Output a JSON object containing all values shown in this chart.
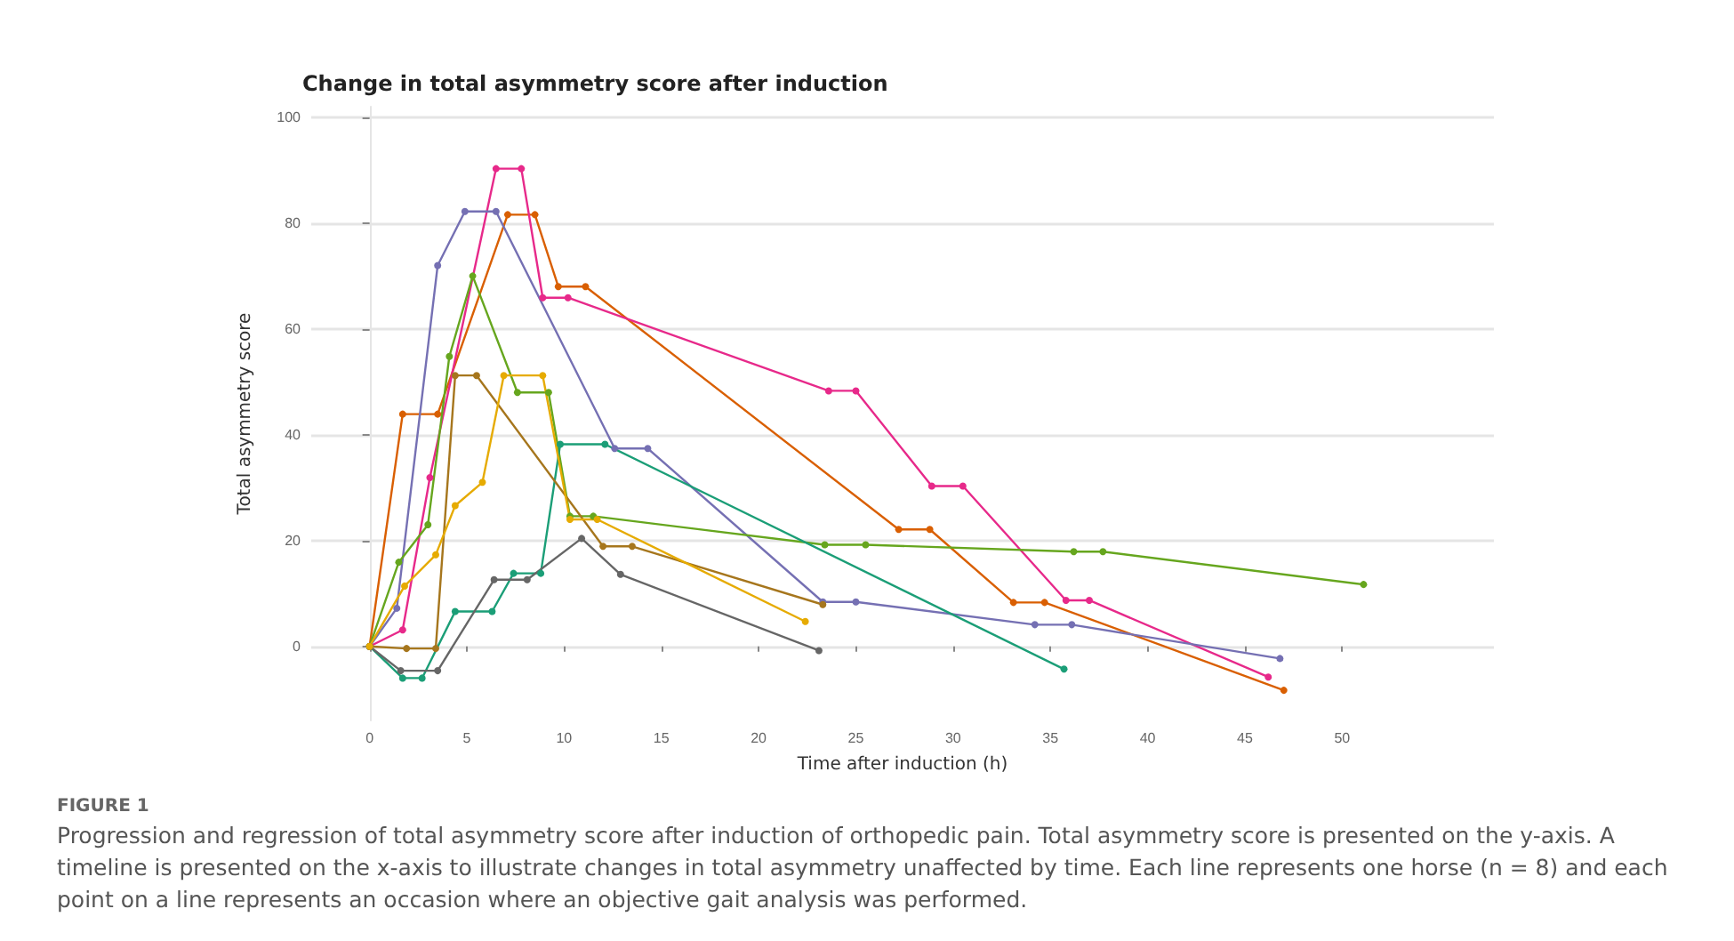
{
  "chart_data": {
    "type": "line",
    "title": "Change in total asymmetry score after induction",
    "xlabel": "Time after induction (h)",
    "ylabel": "Total asymmetry score",
    "xlim": [
      -3,
      57.8
    ],
    "xticks": [
      0,
      5,
      10,
      15,
      20,
      25,
      30,
      35,
      40,
      45,
      50
    ],
    "ylim": [
      -14,
      102
    ],
    "yticks": [
      0,
      20,
      40,
      60,
      80,
      100
    ],
    "grid": "y",
    "marker": "circle",
    "line_style": "solid",
    "series": [
      {
        "color": "#d95f02",
        "x": [
          0,
          1.7,
          3.5,
          7.1,
          8.5,
          9.7,
          11.1,
          27.2,
          28.8,
          33.1,
          34.7,
          47.0
        ],
        "values": [
          0,
          43.9,
          43.9,
          81.6,
          81.6,
          68,
          68,
          22.1,
          22.1,
          8.3,
          8.3,
          -8.3
        ]
      },
      {
        "color": "#e7298a",
        "x": [
          0,
          1.7,
          3.1,
          6.5,
          7.8,
          8.9,
          10.2,
          23.6,
          25.0,
          28.9,
          30.5,
          35.8,
          37.0,
          46.2
        ],
        "values": [
          0,
          3.1,
          31.9,
          90.3,
          90.3,
          65.9,
          65.9,
          48.3,
          48.3,
          30.3,
          30.3,
          8.7,
          8.7,
          -5.8
        ]
      },
      {
        "color": "#7570b3",
        "x": [
          0,
          1.4,
          3.5,
          4.9,
          6.5,
          12.6,
          14.3,
          23.3,
          25.0,
          34.2,
          36.1,
          46.8
        ],
        "values": [
          0,
          7.2,
          72,
          82.2,
          82.2,
          37.4,
          37.4,
          8.4,
          8.4,
          4.1,
          4.1,
          -2.3
        ]
      },
      {
        "color": "#66a61e",
        "x": [
          0,
          1.5,
          3.0,
          4.1,
          5.3,
          7.6,
          9.2,
          10.3,
          11.5,
          23.4,
          25.5,
          36.2,
          37.7,
          51.1
        ],
        "values": [
          0,
          15.9,
          23,
          54.8,
          70,
          48,
          48,
          24.6,
          24.6,
          19.2,
          19.2,
          17.9,
          17.9,
          11.7
        ]
      },
      {
        "color": "#1b9e77",
        "x": [
          0,
          1.7,
          2.7,
          4.4,
          6.3,
          7.4,
          8.8,
          9.8,
          12.1,
          35.7
        ],
        "values": [
          0,
          -6,
          -6,
          6.6,
          6.6,
          13.8,
          13.8,
          38.2,
          38.2,
          -4.3
        ]
      },
      {
        "color": "#666666",
        "x": [
          0,
          1.6,
          3.5,
          6.4,
          8.1,
          10.9,
          12.9,
          23.1
        ],
        "values": [
          0,
          -4.6,
          -4.6,
          12.6,
          12.6,
          20.4,
          13.6,
          -0.8
        ]
      },
      {
        "color": "#a6761d",
        "x": [
          0,
          1.9,
          3.4,
          4.4,
          5.5,
          12.0,
          13.5,
          23.3
        ],
        "values": [
          0,
          -0.4,
          -0.4,
          51.2,
          51.2,
          18.9,
          18.9,
          7.9
        ]
      },
      {
        "color": "#e6ab02",
        "x": [
          0,
          1.8,
          3.4,
          4.4,
          5.8,
          6.9,
          8.9,
          10.3,
          11.7,
          22.4
        ],
        "values": [
          0,
          11.4,
          17.3,
          26.6,
          31,
          51.2,
          51.2,
          24,
          24,
          4.7
        ]
      }
    ],
    "annotations": [
      "FIGURE 1",
      "Progression and regression of total asymmetry score after induction of orthopedic pain. Total asymmetry score is presented on the y-axis. A timeline is presented on the x-axis to illustrate changes in total asymmetry unaffected by time. Each line represents one horse (n = 8) and each point on a line represents an occasion where an objective gait analysis was performed."
    ]
  }
}
